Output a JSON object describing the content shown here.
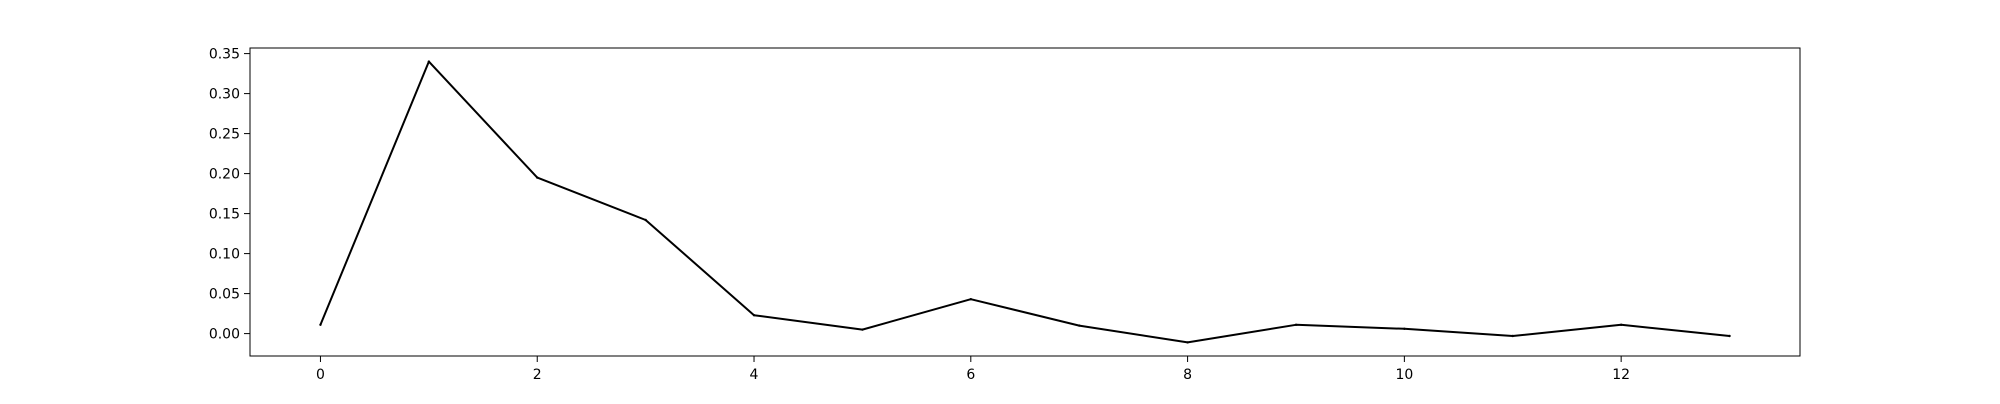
{
  "chart_data": {
    "type": "line",
    "title": "",
    "xlabel": "",
    "ylabel": "",
    "x": [
      0,
      1,
      2,
      3,
      4,
      5,
      6,
      7,
      8,
      9,
      10,
      11,
      12,
      13
    ],
    "series": [
      {
        "values": [
          0.011,
          0.34,
          0.195,
          0.142,
          0.023,
          0.005,
          0.043,
          0.01,
          -0.011,
          0.011,
          0.006,
          -0.003,
          0.011,
          -0.003
        ],
        "color": "#000000"
      }
    ],
    "xlim": [
      -0.65,
      13.65
    ],
    "ylim": [
      -0.028,
      0.357
    ],
    "xticks": [
      0,
      2,
      4,
      6,
      8,
      10,
      12
    ],
    "xtick_labels": [
      "0",
      "2",
      "4",
      "6",
      "8",
      "10",
      "12"
    ],
    "yticks": [
      0.0,
      0.05,
      0.1,
      0.15,
      0.2,
      0.25,
      0.3,
      0.35
    ],
    "ytick_labels": [
      "0.00",
      "0.05",
      "0.10",
      "0.15",
      "0.20",
      "0.25",
      "0.30",
      "0.35"
    ],
    "grid": false,
    "legend": "none"
  }
}
